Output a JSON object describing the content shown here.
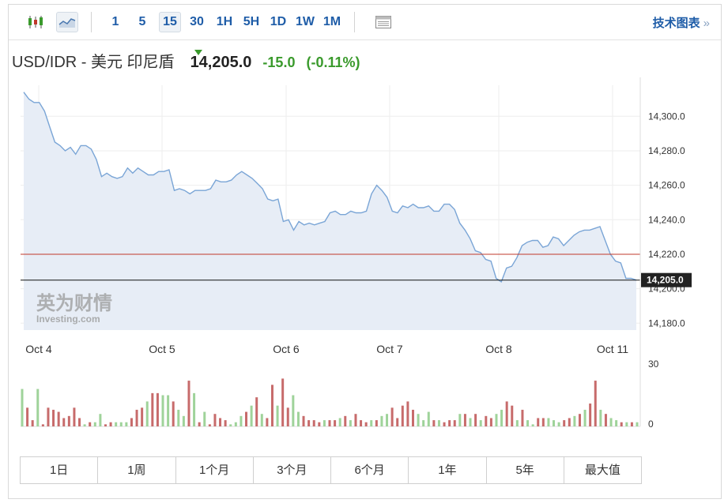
{
  "toolbar": {
    "candle_icon": "candlestick-icon",
    "area_icon": "area-chart-icon",
    "timeframes": [
      "1",
      "5",
      "15",
      "30",
      "1H",
      "5H",
      "1D",
      "1W",
      "1M"
    ],
    "active_timeframe": "15",
    "table_icon": "table-icon",
    "tech_chart_label": "技术图表",
    "tech_chart_arrow": "»"
  },
  "header": {
    "pair": "USD/IDR - 美元 印尼盾",
    "price": "14,205.0",
    "change": "-15.0",
    "change_pct": "(-0.11%)"
  },
  "watermark": {
    "line1": "英为财情",
    "line2": "Investing.com"
  },
  "chart_data": {
    "type": "area",
    "x_tick_labels": [
      "Oct 4",
      "Oct 5",
      "Oct 6",
      "Oct 7",
      "Oct 8",
      "Oct 11"
    ],
    "y_ticks": [
      14300,
      14280,
      14260,
      14240,
      14220,
      14200,
      14180
    ],
    "y_tick_labels": [
      "14,300.0",
      "14,280.0",
      "14,260.0",
      "14,240.0",
      "14,220.0",
      "14,200.0",
      "14,180.0"
    ],
    "ylim": [
      14176,
      14318
    ],
    "reference_line": 14220,
    "current_price": 14205,
    "current_price_label": "14,205.0",
    "colors": {
      "line": "#7aa5d6",
      "area": "#e7edf6",
      "ref_line": "#c0392b",
      "price_line": "#111111",
      "up": "#9fd39a",
      "down": "#c76b6b"
    },
    "series": [
      {
        "values": [
          14314,
          14310,
          14308,
          14308,
          14303,
          14294,
          14285,
          14283,
          14280,
          14282,
          14278,
          14283,
          14283,
          14281,
          14275,
          14265,
          14267,
          14265,
          14264,
          14265,
          14270,
          14267,
          14270,
          14268,
          14266,
          14266,
          14268,
          14268,
          14269,
          14257,
          14258,
          14257,
          14255,
          14257,
          14257,
          14257,
          14258,
          14263,
          14262,
          14262,
          14263,
          14266,
          14268,
          14266,
          14264,
          14261,
          14258,
          14252,
          14251,
          14252,
          14239,
          14240,
          14234,
          14239,
          14237,
          14238,
          14237,
          14238,
          14239,
          14244,
          14245,
          14243,
          14243,
          14245,
          14244,
          14244,
          14245,
          14255,
          14260,
          14257,
          14253,
          14245,
          14244,
          14248,
          14247,
          14249,
          14247,
          14247,
          14248,
          14245,
          14245,
          14249,
          14249,
          14246,
          14238,
          14234,
          14229,
          14222,
          14221,
          14217,
          14216,
          14206,
          14204,
          14212,
          14213,
          14218,
          14225,
          14227,
          14228,
          14228,
          14224,
          14225,
          14230,
          14229,
          14225,
          14228,
          14231,
          14233,
          14234,
          14234,
          14235,
          14236,
          14228,
          14220,
          14216,
          14215,
          14206,
          14206,
          14205
        ]
      }
    ],
    "volume": {
      "ylim": [
        0,
        30
      ],
      "tick_labels": [
        "30",
        "0"
      ],
      "values": [
        18,
        9,
        3,
        18,
        1,
        9,
        8,
        7,
        4,
        5,
        9,
        4,
        1,
        2,
        2,
        6,
        1,
        2,
        2,
        2,
        2,
        4,
        8,
        9,
        12,
        16,
        16,
        15,
        15,
        12,
        8,
        5,
        22,
        16,
        2,
        7,
        1,
        6,
        4,
        3,
        1,
        2,
        5,
        7,
        10,
        14,
        6,
        4,
        20,
        10,
        23,
        9,
        15,
        7,
        5,
        3,
        3,
        2,
        3,
        3,
        3,
        4,
        5,
        3,
        6,
        3,
        2,
        3,
        3,
        5,
        6,
        9,
        4,
        10,
        12,
        8,
        6,
        3,
        7,
        3,
        3,
        2,
        3,
        3,
        6,
        6,
        4,
        6,
        3,
        5,
        4,
        6,
        8,
        12,
        10,
        3,
        8,
        3,
        1,
        4,
        4,
        4,
        3,
        2,
        3,
        4,
        5,
        6,
        8,
        11,
        22,
        8,
        6,
        4,
        3,
        2,
        2,
        2,
        2
      ],
      "up": [
        1,
        0,
        0,
        1,
        0,
        0,
        0,
        0,
        0,
        0,
        0,
        0,
        1,
        0,
        1,
        1,
        0,
        0,
        1,
        1,
        1,
        0,
        0,
        0,
        1,
        0,
        0,
        1,
        1,
        0,
        1,
        1,
        0,
        1,
        0,
        1,
        0,
        0,
        0,
        0,
        1,
        1,
        1,
        0,
        1,
        0,
        1,
        0,
        0,
        1,
        0,
        0,
        1,
        1,
        0,
        0,
        0,
        0,
        1,
        0,
        0,
        1,
        0,
        1,
        0,
        0,
        0,
        1,
        0,
        1,
        1,
        0,
        0,
        0,
        0,
        0,
        1,
        1,
        1,
        0,
        1,
        0,
        0,
        0,
        1,
        0,
        1,
        0,
        1,
        0,
        0,
        1,
        1,
        0,
        0,
        1,
        0,
        1,
        1,
        0,
        0,
        1,
        1,
        1,
        0,
        0,
        1,
        0,
        1,
        0,
        0,
        1,
        0,
        1,
        1,
        0,
        1,
        0,
        1
      ]
    }
  },
  "range_tabs": [
    "1日",
    "1周",
    "1个月",
    "3个月",
    "6个月",
    "1年",
    "5年",
    "最大值"
  ]
}
